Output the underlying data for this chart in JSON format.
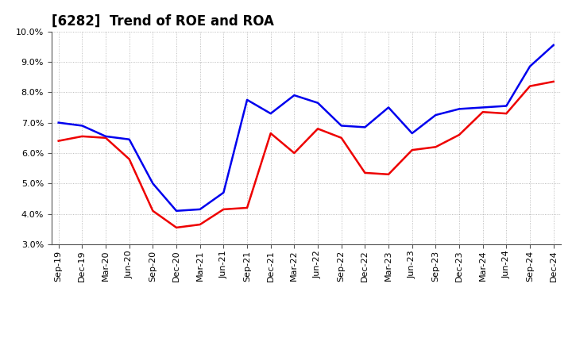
{
  "title": "[6282]  Trend of ROE and ROA",
  "x_labels": [
    "Sep-19",
    "Dec-19",
    "Mar-20",
    "Jun-20",
    "Sep-20",
    "Dec-20",
    "Mar-21",
    "Jun-21",
    "Sep-21",
    "Dec-21",
    "Mar-22",
    "Jun-22",
    "Sep-22",
    "Dec-22",
    "Mar-23",
    "Jun-23",
    "Sep-23",
    "Dec-23",
    "Mar-24",
    "Jun-24",
    "Sep-24",
    "Dec-24"
  ],
  "roe": [
    6.4,
    6.55,
    6.5,
    5.8,
    4.1,
    3.55,
    3.65,
    4.15,
    4.2,
    6.65,
    6.0,
    6.8,
    6.5,
    5.35,
    5.3,
    6.1,
    6.2,
    6.6,
    7.35,
    7.3,
    8.2,
    8.35
  ],
  "roa": [
    7.0,
    6.9,
    6.55,
    6.45,
    5.0,
    4.1,
    4.15,
    4.7,
    7.75,
    7.3,
    7.9,
    7.65,
    6.9,
    6.85,
    7.5,
    6.65,
    7.25,
    7.45,
    7.5,
    7.55,
    8.85,
    9.55
  ],
  "roe_color": "#ee0000",
  "roa_color": "#0000ee",
  "ylim_min": 3.0,
  "ylim_max": 10.0,
  "yticks": [
    3.0,
    4.0,
    5.0,
    6.0,
    7.0,
    8.0,
    9.0,
    10.0
  ],
  "background_color": "#ffffff",
  "grid_color": "#999999",
  "title_fontsize": 12,
  "legend_fontsize": 10,
  "tick_fontsize": 8,
  "linewidth": 1.8
}
